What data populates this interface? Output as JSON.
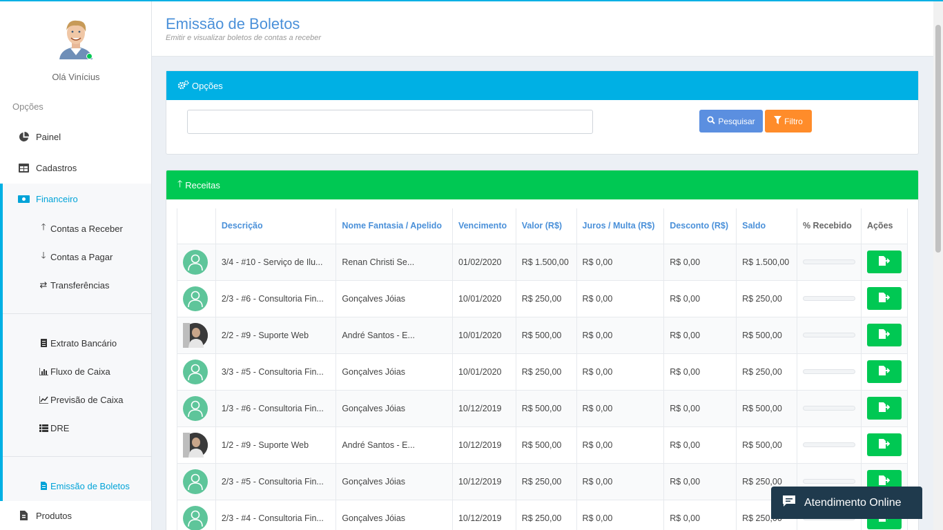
{
  "sidebar": {
    "greeting": "Olá Vinícius",
    "section_label": "Opções",
    "items": [
      {
        "label": "Painel",
        "icon": "pie-chart-icon"
      },
      {
        "label": "Cadastros",
        "icon": "table-icon"
      },
      {
        "label": "Financeiro",
        "icon": "money-icon"
      },
      {
        "label": "Produtos",
        "icon": "box-icon"
      }
    ],
    "financeiro": {
      "group1": [
        {
          "label": "Contas a Receber",
          "icon": "arrow-up-icon"
        },
        {
          "label": "Contas a Pagar",
          "icon": "arrow-down-icon"
        },
        {
          "label": "Transferências",
          "icon": "exchange-icon"
        }
      ],
      "group2": [
        {
          "label": "Extrato Bancário",
          "icon": "file-icon"
        },
        {
          "label": "Fluxo de Caixa",
          "icon": "bar-chart-icon"
        },
        {
          "label": "Previsão de Caixa",
          "icon": "line-chart-icon"
        },
        {
          "label": "DRE",
          "icon": "list-icon"
        }
      ],
      "group3": [
        {
          "label": "Emissão de Boletos",
          "icon": "document-icon"
        }
      ]
    }
  },
  "header": {
    "title": "Emissão de Boletos",
    "subtitle": "Emitir e visualizar boletos de contas a receber"
  },
  "options_panel": {
    "title": "Opções",
    "search_value": "",
    "search_button": "Pesquisar",
    "filter_button": "Filtro"
  },
  "receitas_panel": {
    "title": "Receitas",
    "columns": [
      "",
      "Descrição",
      "Nome Fantasia / Apelido",
      "Vencimento",
      "Valor (R$)",
      "Juros / Multa (R$)",
      "Desconto (R$)",
      "Saldo",
      "% Recebido",
      "Ações"
    ],
    "rows": [
      {
        "avatar": "user-placeholder",
        "descricao": "3/4 - #10 - Serviço de Ilu...",
        "nome": "Renan Christi Se...",
        "vencimento": "01/02/2020",
        "valor": "R$ 1.500,00",
        "juros": "R$ 0,00",
        "desconto": "R$ 0,00",
        "saldo": "R$ 1.500,00",
        "recebido": 0
      },
      {
        "avatar": "user-placeholder",
        "descricao": "2/3 - #6 - Consultoria Fin...",
        "nome": "Gonçalves Jóias",
        "vencimento": "10/01/2020",
        "valor": "R$ 250,00",
        "juros": "R$ 0,00",
        "desconto": "R$ 0,00",
        "saldo": "R$ 250,00",
        "recebido": 0
      },
      {
        "avatar": "photo",
        "descricao": "2/2 - #9 - Suporte Web",
        "nome": "André Santos - E...",
        "vencimento": "10/01/2020",
        "valor": "R$ 500,00",
        "juros": "R$ 0,00",
        "desconto": "R$ 0,00",
        "saldo": "R$ 500,00",
        "recebido": 0
      },
      {
        "avatar": "user-placeholder",
        "descricao": "3/3 - #5 - Consultoria Fin...",
        "nome": "Gonçalves Jóias",
        "vencimento": "10/01/2020",
        "valor": "R$ 250,00",
        "juros": "R$ 0,00",
        "desconto": "R$ 0,00",
        "saldo": "R$ 250,00",
        "recebido": 0
      },
      {
        "avatar": "user-placeholder",
        "descricao": "1/3 - #6 - Consultoria Fin...",
        "nome": "Gonçalves Jóias",
        "vencimento": "10/12/2019",
        "valor": "R$ 500,00",
        "juros": "R$ 0,00",
        "desconto": "R$ 0,00",
        "saldo": "R$ 500,00",
        "recebido": 0
      },
      {
        "avatar": "photo",
        "descricao": "1/2 - #9 - Suporte Web",
        "nome": "André Santos - E...",
        "vencimento": "10/12/2019",
        "valor": "R$ 500,00",
        "juros": "R$ 0,00",
        "desconto": "R$ 0,00",
        "saldo": "R$ 500,00",
        "recebido": 0
      },
      {
        "avatar": "user-placeholder",
        "descricao": "2/3 - #5 - Consultoria Fin...",
        "nome": "Gonçalves Jóias",
        "vencimento": "10/12/2019",
        "valor": "R$ 250,00",
        "juros": "R$ 0,00",
        "desconto": "R$ 0,00",
        "saldo": "R$ 250,00",
        "recebido": 0
      },
      {
        "avatar": "user-placeholder",
        "descricao": "2/3 - #4 - Consultoria Fin...",
        "nome": "Gonçalves Jóias",
        "vencimento": "10/12/2019",
        "valor": "R$ 250,00",
        "juros": "R$ 0,00",
        "desconto": "R$ 0,00",
        "saldo": "R$ 250,00",
        "recebido": 0
      }
    ]
  },
  "chat": {
    "label": "Atendimento Online",
    "icon": "chat-bubble-icon"
  },
  "colors": {
    "accent": "#00b0e4",
    "success": "#00c853",
    "primary_button": "#5b8fe0",
    "warning_button": "#ff8c2a",
    "title_blue": "#4a90d9",
    "chat_bg": "#1f3a4d"
  }
}
